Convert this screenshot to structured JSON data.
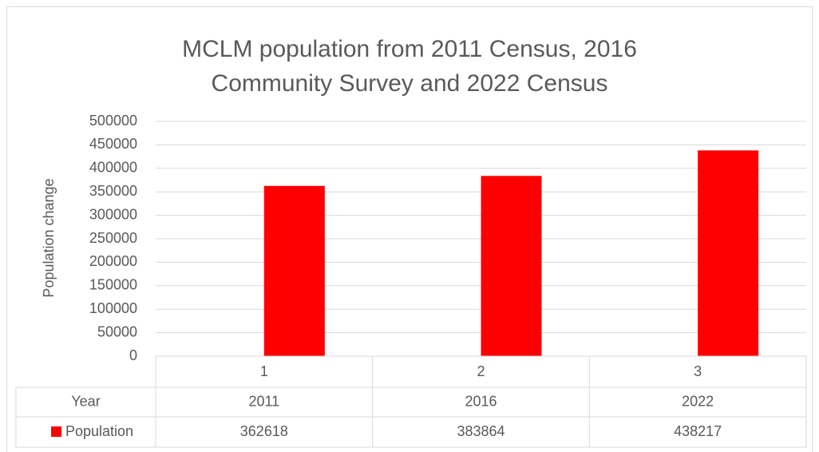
{
  "chart_data": {
    "type": "bar",
    "title": "MCLM population from 2011 Census, 2016 Community Survey and 2022 Census",
    "y_label": "Population change",
    "categories": [
      "1",
      "2",
      "3"
    ],
    "series": [
      {
        "name": "Year",
        "color": "none",
        "values": [
          2011,
          2016,
          2022
        ]
      },
      {
        "name": "Population",
        "color": "#ff0000",
        "values": [
          362618,
          383864,
          438217
        ]
      }
    ],
    "ylim": [
      0,
      500000
    ],
    "yticks": [
      0,
      50000,
      100000,
      150000,
      200000,
      250000,
      300000,
      350000,
      400000,
      450000,
      500000
    ],
    "grid": true,
    "data_table": true
  }
}
